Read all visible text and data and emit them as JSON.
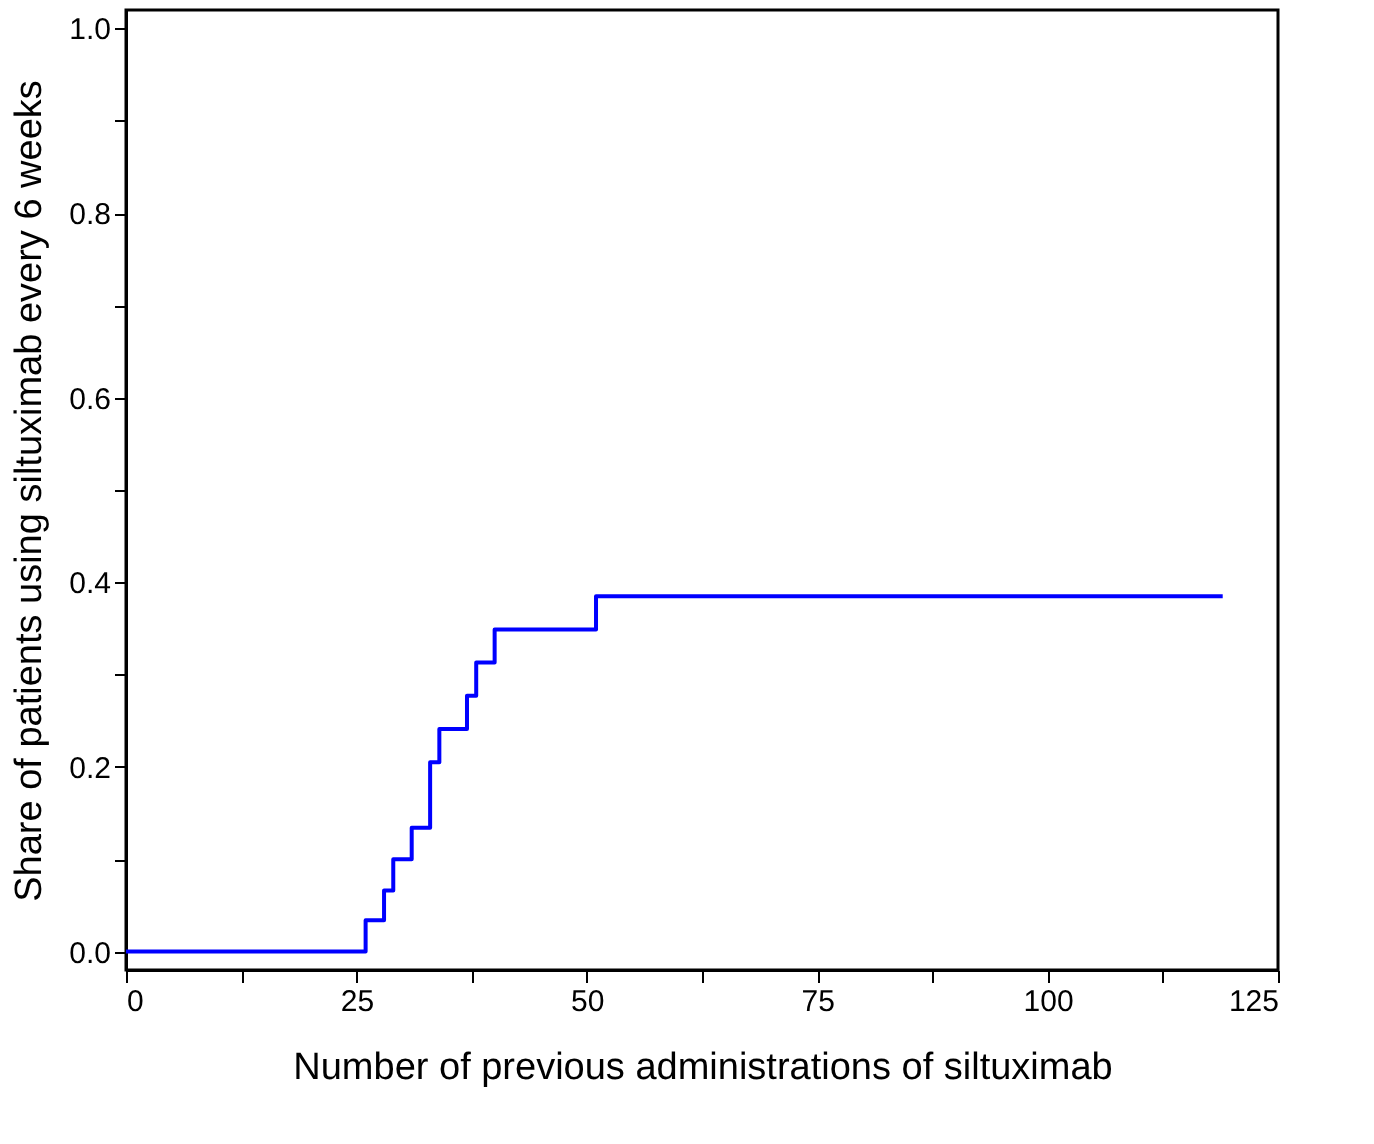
{
  "chart_data": {
    "type": "step",
    "xlabel": "Number of previous administrations of siltuximab",
    "ylabel": "Share of patients using siltuximab every 6 weeks",
    "x": [
      0,
      26,
      28,
      29,
      31,
      33,
      34,
      37,
      38,
      40,
      51,
      119
    ],
    "series": [
      {
        "color": "#0000ff",
        "values": [
          0,
          0.034,
          0.066,
          0.1,
          0.134,
          0.205,
          0.241,
          0.277,
          0.313,
          0.349,
          0.385,
          0.385
        ]
      }
    ],
    "xlim": [
      0,
      125
    ],
    "ylim": [
      -0.02,
      1.02
    ],
    "xticks": [
      0,
      {
        "value": 12.5,
        "label": null
      },
      25,
      {
        "value": 37.5,
        "label": null
      },
      50,
      {
        "value": 62.5,
        "label": null
      },
      75,
      {
        "value": 87.5,
        "label": null
      },
      100,
      {
        "value": 112.5,
        "label": null
      },
      125
    ],
    "yticks": [
      {
        "value": 0,
        "label": "0.0"
      },
      {
        "value": 0.1,
        "label": null
      },
      0.2,
      {
        "value": 0.3,
        "label": null
      },
      0.4,
      {
        "value": 0.5,
        "label": null
      },
      0.6,
      {
        "value": 0.7,
        "label": null
      },
      0.8,
      {
        "value": 0.9,
        "label": null
      },
      {
        "value": 1,
        "label": "1.0"
      }
    ],
    "grid": false,
    "marker": "none",
    "line_style": "solid"
  }
}
